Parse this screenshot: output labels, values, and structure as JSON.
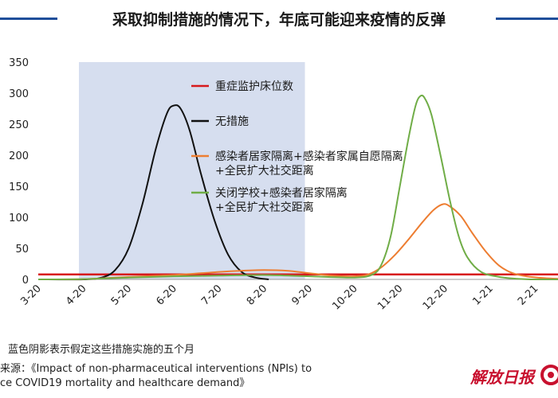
{
  "header": {
    "title": "采取抑制措施的情况下，年底可能迎来疫情的反弹"
  },
  "chart_data": {
    "type": "line",
    "title": "采取抑制措施的情况下，年底可能迎来疫情的反弹",
    "xlabel": "",
    "ylabel": "",
    "ylim": [
      0,
      350
    ],
    "yticks": [
      0,
      50,
      100,
      150,
      200,
      250,
      300,
      350
    ],
    "x_month_range": [
      0,
      11.5
    ],
    "x_ticks": [
      {
        "label": "3-20",
        "m": 0
      },
      {
        "label": "4-20",
        "m": 1
      },
      {
        "label": "5-20",
        "m": 2
      },
      {
        "label": "6-20",
        "m": 3
      },
      {
        "label": "7-20",
        "m": 4
      },
      {
        "label": "8-20",
        "m": 5
      },
      {
        "label": "9-20",
        "m": 6
      },
      {
        "label": "10-20",
        "m": 7
      },
      {
        "label": "11-20",
        "m": 8
      },
      {
        "label": "12-20",
        "m": 9
      },
      {
        "label": "1-21",
        "m": 10
      },
      {
        "label": "2-21",
        "m": 11
      }
    ],
    "shaded_period": {
      "m_start": 0.9,
      "m_end": 5.9,
      "color": "#d6deef"
    },
    "series": [
      {
        "name": "重症监护床位数",
        "color": "#d7191c",
        "points": [
          [
            0,
            8
          ],
          [
            11.5,
            8
          ]
        ]
      },
      {
        "name": "无措施",
        "color": "#111111",
        "points": [
          [
            0,
            0
          ],
          [
            1,
            0
          ],
          [
            1.4,
            3
          ],
          [
            1.7,
            15
          ],
          [
            2,
            50
          ],
          [
            2.3,
            120
          ],
          [
            2.6,
            210
          ],
          [
            2.85,
            268
          ],
          [
            3,
            280
          ],
          [
            3.15,
            275
          ],
          [
            3.35,
            240
          ],
          [
            3.6,
            170
          ],
          [
            3.9,
            95
          ],
          [
            4.2,
            40
          ],
          [
            4.5,
            12
          ],
          [
            4.8,
            3
          ],
          [
            5.1,
            0
          ]
        ]
      },
      {
        "name": "感染者居家隔离+感染者家属自愿隔离+全民扩大社交距离",
        "color": "#ed7d31",
        "points": [
          [
            0,
            0
          ],
          [
            1,
            0.5
          ],
          [
            2,
            4
          ],
          [
            3,
            7
          ],
          [
            4,
            12
          ],
          [
            4.5,
            14
          ],
          [
            5,
            15
          ],
          [
            5.5,
            14
          ],
          [
            6,
            10
          ],
          [
            6.5,
            6
          ],
          [
            7,
            5
          ],
          [
            7.3,
            8
          ],
          [
            7.6,
            20
          ],
          [
            7.9,
            40
          ],
          [
            8.2,
            65
          ],
          [
            8.5,
            92
          ],
          [
            8.75,
            112
          ],
          [
            8.95,
            121
          ],
          [
            9.1,
            118
          ],
          [
            9.35,
            102
          ],
          [
            9.6,
            75
          ],
          [
            9.9,
            45
          ],
          [
            10.2,
            22
          ],
          [
            10.5,
            10
          ],
          [
            10.8,
            5
          ],
          [
            11.2,
            2
          ],
          [
            11.5,
            1
          ]
        ]
      },
      {
        "name": "关闭学校+感染者居家隔离+全民扩大社交距离",
        "color": "#70ad47",
        "points": [
          [
            0,
            0
          ],
          [
            1,
            0.5
          ],
          [
            2,
            3
          ],
          [
            3,
            5
          ],
          [
            4,
            6
          ],
          [
            5,
            7
          ],
          [
            6,
            5
          ],
          [
            7,
            3
          ],
          [
            7.4,
            8
          ],
          [
            7.6,
            25
          ],
          [
            7.8,
            70
          ],
          [
            8,
            150
          ],
          [
            8.2,
            230
          ],
          [
            8.35,
            280
          ],
          [
            8.45,
            295
          ],
          [
            8.55,
            292
          ],
          [
            8.7,
            265
          ],
          [
            8.9,
            200
          ],
          [
            9.1,
            130
          ],
          [
            9.3,
            70
          ],
          [
            9.5,
            35
          ],
          [
            9.8,
            12
          ],
          [
            10.2,
            4
          ],
          [
            10.6,
            1
          ],
          [
            11,
            0
          ],
          [
            11.5,
            0
          ]
        ]
      }
    ],
    "legend": [
      {
        "lines": [
          "重症监护床位数"
        ],
        "color": "#d7191c"
      },
      {
        "lines": [
          "无措施"
        ],
        "color": "#111111"
      },
      {
        "lines": [
          "感染者居家隔离+感染者家属自愿隔离",
          "+全民扩大社交距离"
        ],
        "color": "#ed7d31"
      },
      {
        "lines": [
          "关闭学校+感染者居家隔离",
          "+全民扩大社交距离"
        ],
        "color": "#70ad47"
      }
    ],
    "legend_position": "upper-center"
  },
  "notes": {
    "shade_note": "蓝色阴影表示假定这些措施实施的五个月",
    "source_line1": "来源：《Impact of non-pharmaceutical interventions (NPIs) to",
    "source_line2": "ce COVID19 mortality and healthcare demand》"
  },
  "branding": {
    "logo_text": "解放日报"
  }
}
